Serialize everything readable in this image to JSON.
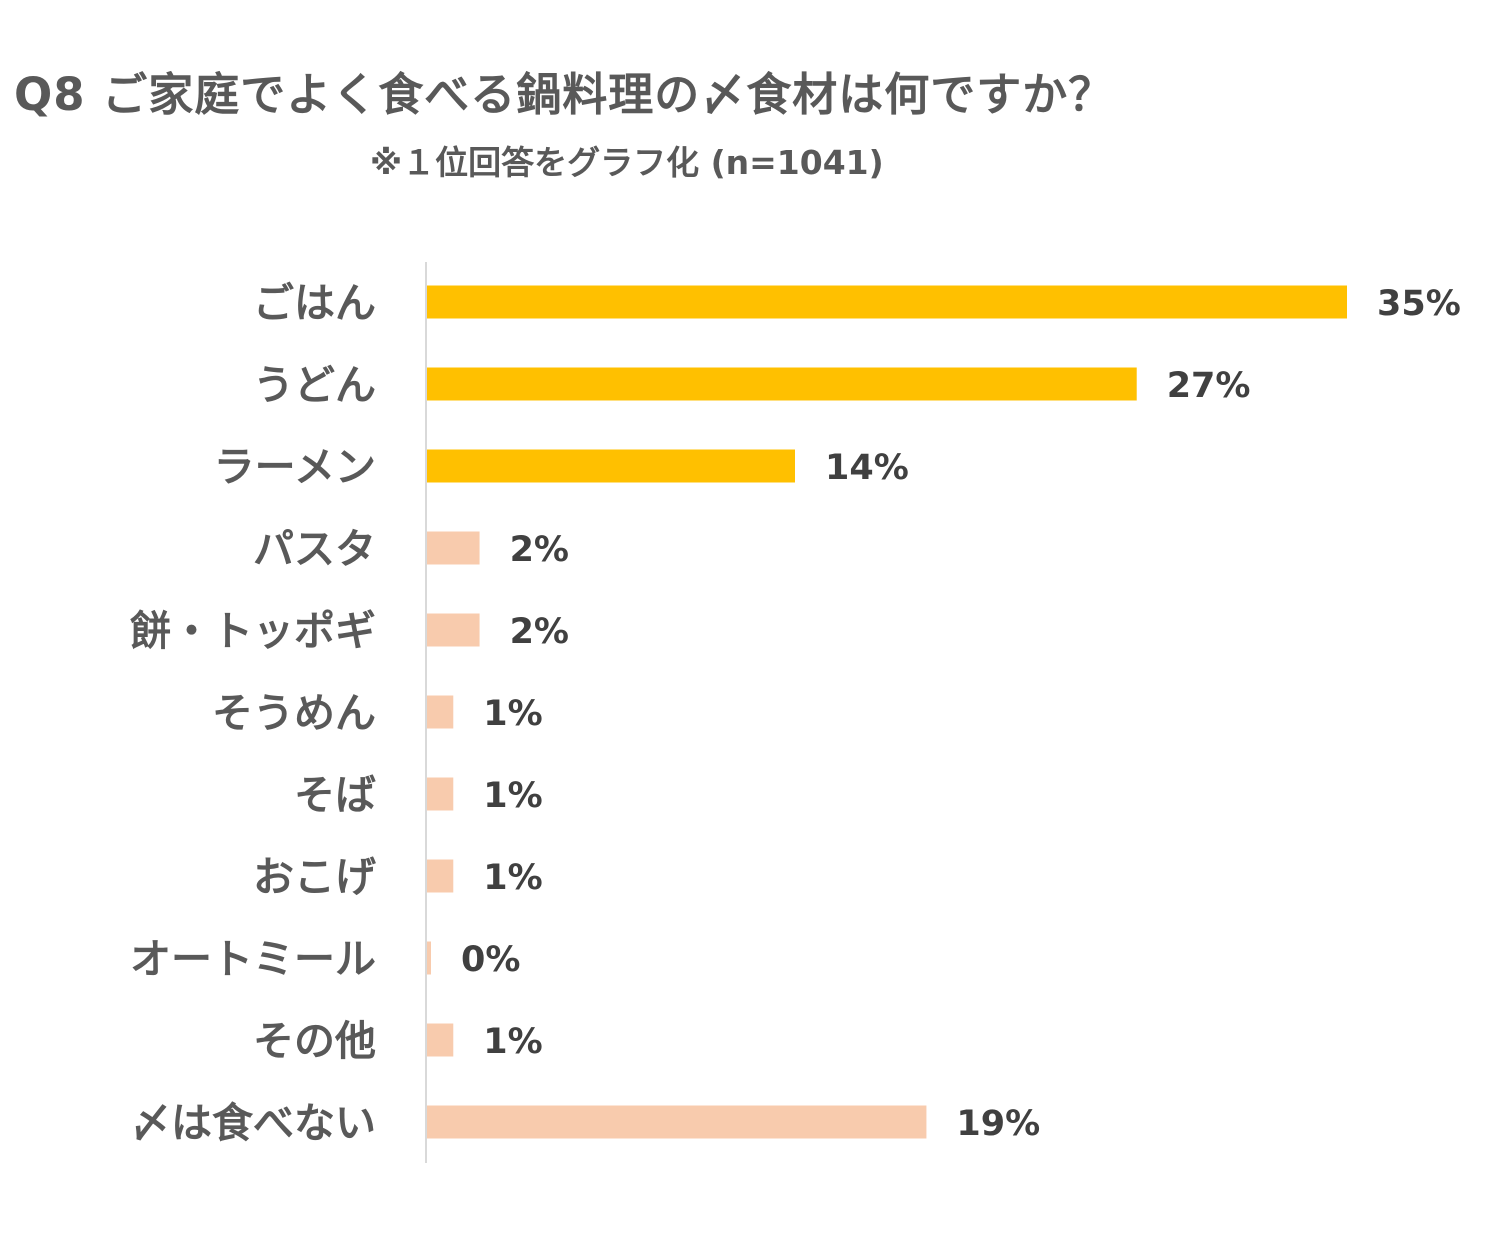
{
  "title": "Q8 ご家庭でよく食べる鍋料理の〆食材は何ですか？",
  "subtitle": "※１位回答をグラフ化  (n=1041)",
  "colors": {
    "highlight": "#FFC000",
    "normal": "#F8CBAD",
    "axis": "#D9D9D9",
    "label": "#595959",
    "value": "#404040"
  },
  "chart_data": {
    "type": "bar",
    "orientation": "horizontal",
    "categories": [
      "ごはん",
      "うどん",
      "ラーメン",
      "パスタ",
      "餅・トッポギ",
      "そうめん",
      "そば",
      "おこげ",
      "オートミール",
      "その他",
      "〆は食べない"
    ],
    "values": [
      35,
      27,
      14,
      2,
      2,
      1,
      1,
      1,
      0,
      1,
      19
    ],
    "value_labels": [
      "35%",
      "27%",
      "14%",
      "2%",
      "2%",
      "1%",
      "1%",
      "1%",
      "0%",
      "1%",
      "19%"
    ],
    "highlight_top": 3,
    "unit": "%",
    "xlim": [
      0,
      36
    ],
    "grid": false,
    "legend": "none"
  }
}
